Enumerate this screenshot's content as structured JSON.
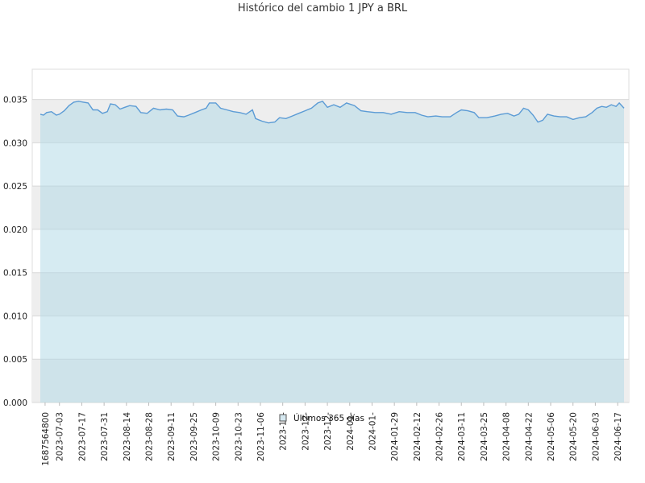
{
  "chart_data": {
    "type": "area",
    "title": "Histórico del cambio 1 JPY a BRL",
    "xlabel": "",
    "ylabel": "",
    "ylim": [
      0,
      0.0385
    ],
    "y_ticks": [
      "0.000",
      "0.005",
      "0.010",
      "0.015",
      "0.020",
      "0.025",
      "0.030",
      "0.035"
    ],
    "x_range": [
      "2023-06-21",
      "2024-06-21"
    ],
    "x_ticks": [
      {
        "label": "1687564800",
        "date": "2023-06-24"
      },
      {
        "label": "2023-07-03",
        "date": "2023-07-03"
      },
      {
        "label": "2023-07-17",
        "date": "2023-07-17"
      },
      {
        "label": "2023-07-31",
        "date": "2023-07-31"
      },
      {
        "label": "2023-08-14",
        "date": "2023-08-14"
      },
      {
        "label": "2023-08-28",
        "date": "2023-08-28"
      },
      {
        "label": "2023-09-11",
        "date": "2023-09-11"
      },
      {
        "label": "2023-09-25",
        "date": "2023-09-25"
      },
      {
        "label": "2023-10-09",
        "date": "2023-10-09"
      },
      {
        "label": "2023-10-23",
        "date": "2023-10-23"
      },
      {
        "label": "2023-11-06",
        "date": "2023-11-06"
      },
      {
        "label": "2023-11-",
        "date": "2023-11-20"
      },
      {
        "label": "2023-12-",
        "date": "2023-12-04"
      },
      {
        "label": "2023-12-",
        "date": "2023-12-18"
      },
      {
        "label": "2024-01-",
        "date": "2024-01-01"
      },
      {
        "label": "2024-01-",
        "date": "2024-01-15"
      },
      {
        "label": "2024-01-29",
        "date": "2024-01-29"
      },
      {
        "label": "2024-02-12",
        "date": "2024-02-12"
      },
      {
        "label": "2024-02-26",
        "date": "2024-02-26"
      },
      {
        "label": "2024-03-11",
        "date": "2024-03-11"
      },
      {
        "label": "2024-03-25",
        "date": "2024-03-25"
      },
      {
        "label": "2024-04-08",
        "date": "2024-04-08"
      },
      {
        "label": "2024-04-22",
        "date": "2024-04-22"
      },
      {
        "label": "2024-05-06",
        "date": "2024-05-06"
      },
      {
        "label": "2024-05-20",
        "date": "2024-05-20"
      },
      {
        "label": "2024-06-03",
        "date": "2024-06-03"
      },
      {
        "label": "2024-06-17",
        "date": "2024-06-17"
      }
    ],
    "grid": true,
    "legend_position": "bottom-center",
    "series": [
      {
        "name": "Últimos 365 días",
        "line_color": "#5b9bd5",
        "fill_color": "#add8e6",
        "points": [
          [
            "2023-06-21",
            0.0333
          ],
          [
            "2023-06-23",
            0.0332
          ],
          [
            "2023-06-25",
            0.0335
          ],
          [
            "2023-06-28",
            0.0336
          ],
          [
            "2023-07-01",
            0.0332
          ],
          [
            "2023-07-03",
            0.0333
          ],
          [
            "2023-07-06",
            0.0337
          ],
          [
            "2023-07-09",
            0.0343
          ],
          [
            "2023-07-12",
            0.0347
          ],
          [
            "2023-07-15",
            0.0348
          ],
          [
            "2023-07-18",
            0.0347
          ],
          [
            "2023-07-21",
            0.0346
          ],
          [
            "2023-07-24",
            0.0338
          ],
          [
            "2023-07-27",
            0.0338
          ],
          [
            "2023-07-30",
            0.0334
          ],
          [
            "2023-08-02",
            0.0336
          ],
          [
            "2023-08-04",
            0.0345
          ],
          [
            "2023-08-07",
            0.0344
          ],
          [
            "2023-08-10",
            0.0339
          ],
          [
            "2023-08-13",
            0.0341
          ],
          [
            "2023-08-16",
            0.0343
          ],
          [
            "2023-08-20",
            0.0342
          ],
          [
            "2023-08-23",
            0.0335
          ],
          [
            "2023-08-27",
            0.0334
          ],
          [
            "2023-08-31",
            0.034
          ],
          [
            "2023-09-04",
            0.0338
          ],
          [
            "2023-09-08",
            0.0339
          ],
          [
            "2023-09-12",
            0.0338
          ],
          [
            "2023-09-15",
            0.0331
          ],
          [
            "2023-09-19",
            0.033
          ],
          [
            "2023-09-22",
            0.0332
          ],
          [
            "2023-09-26",
            0.0335
          ],
          [
            "2023-09-30",
            0.0338
          ],
          [
            "2023-10-03",
            0.034
          ],
          [
            "2023-10-05",
            0.0346
          ],
          [
            "2023-10-09",
            0.0346
          ],
          [
            "2023-10-12",
            0.034
          ],
          [
            "2023-10-16",
            0.0338
          ],
          [
            "2023-10-20",
            0.0336
          ],
          [
            "2023-10-24",
            0.0335
          ],
          [
            "2023-10-28",
            0.0333
          ],
          [
            "2023-11-01",
            0.0338
          ],
          [
            "2023-11-03",
            0.0328
          ],
          [
            "2023-11-07",
            0.0325
          ],
          [
            "2023-11-11",
            0.0323
          ],
          [
            "2023-11-15",
            0.0324
          ],
          [
            "2023-11-18",
            0.0329
          ],
          [
            "2023-11-22",
            0.0328
          ],
          [
            "2023-11-26",
            0.0331
          ],
          [
            "2023-11-30",
            0.0334
          ],
          [
            "2023-12-04",
            0.0337
          ],
          [
            "2023-12-08",
            0.034
          ],
          [
            "2023-12-12",
            0.0346
          ],
          [
            "2023-12-15",
            0.0348
          ],
          [
            "2023-12-18",
            0.0341
          ],
          [
            "2023-12-22",
            0.0344
          ],
          [
            "2023-12-26",
            0.0341
          ],
          [
            "2023-12-30",
            0.0346
          ],
          [
            "2024-01-04",
            0.0343
          ],
          [
            "2024-01-08",
            0.0337
          ],
          [
            "2024-01-12",
            0.0336
          ],
          [
            "2024-01-17",
            0.0335
          ],
          [
            "2024-01-22",
            0.0335
          ],
          [
            "2024-01-27",
            0.0333
          ],
          [
            "2024-02-01",
            0.0336
          ],
          [
            "2024-02-06",
            0.0335
          ],
          [
            "2024-02-11",
            0.0335
          ],
          [
            "2024-02-15",
            0.0332
          ],
          [
            "2024-02-19",
            0.033
          ],
          [
            "2024-02-24",
            0.0331
          ],
          [
            "2024-02-28",
            0.033
          ],
          [
            "2024-03-04",
            0.033
          ],
          [
            "2024-03-08",
            0.0335
          ],
          [
            "2024-03-11",
            0.0338
          ],
          [
            "2024-03-15",
            0.0337
          ],
          [
            "2024-03-19",
            0.0335
          ],
          [
            "2024-03-22",
            0.0329
          ],
          [
            "2024-03-27",
            0.0329
          ],
          [
            "2024-04-01",
            0.0331
          ],
          [
            "2024-04-05",
            0.0333
          ],
          [
            "2024-04-09",
            0.0334
          ],
          [
            "2024-04-13",
            0.0331
          ],
          [
            "2024-04-16",
            0.0333
          ],
          [
            "2024-04-19",
            0.034
          ],
          [
            "2024-04-22",
            0.0338
          ],
          [
            "2024-04-25",
            0.0332
          ],
          [
            "2024-04-28",
            0.0324
          ],
          [
            "2024-05-01",
            0.0326
          ],
          [
            "2024-05-04",
            0.0333
          ],
          [
            "2024-05-08",
            0.0331
          ],
          [
            "2024-05-12",
            0.033
          ],
          [
            "2024-05-16",
            0.033
          ],
          [
            "2024-05-20",
            0.0327
          ],
          [
            "2024-05-24",
            0.0329
          ],
          [
            "2024-05-28",
            0.033
          ],
          [
            "2024-06-01",
            0.0335
          ],
          [
            "2024-06-04",
            0.034
          ],
          [
            "2024-06-07",
            0.0342
          ],
          [
            "2024-06-10",
            0.0341
          ],
          [
            "2024-06-13",
            0.0344
          ],
          [
            "2024-06-16",
            0.0342
          ],
          [
            "2024-06-18",
            0.0346
          ],
          [
            "2024-06-21",
            0.034
          ]
        ]
      }
    ]
  }
}
